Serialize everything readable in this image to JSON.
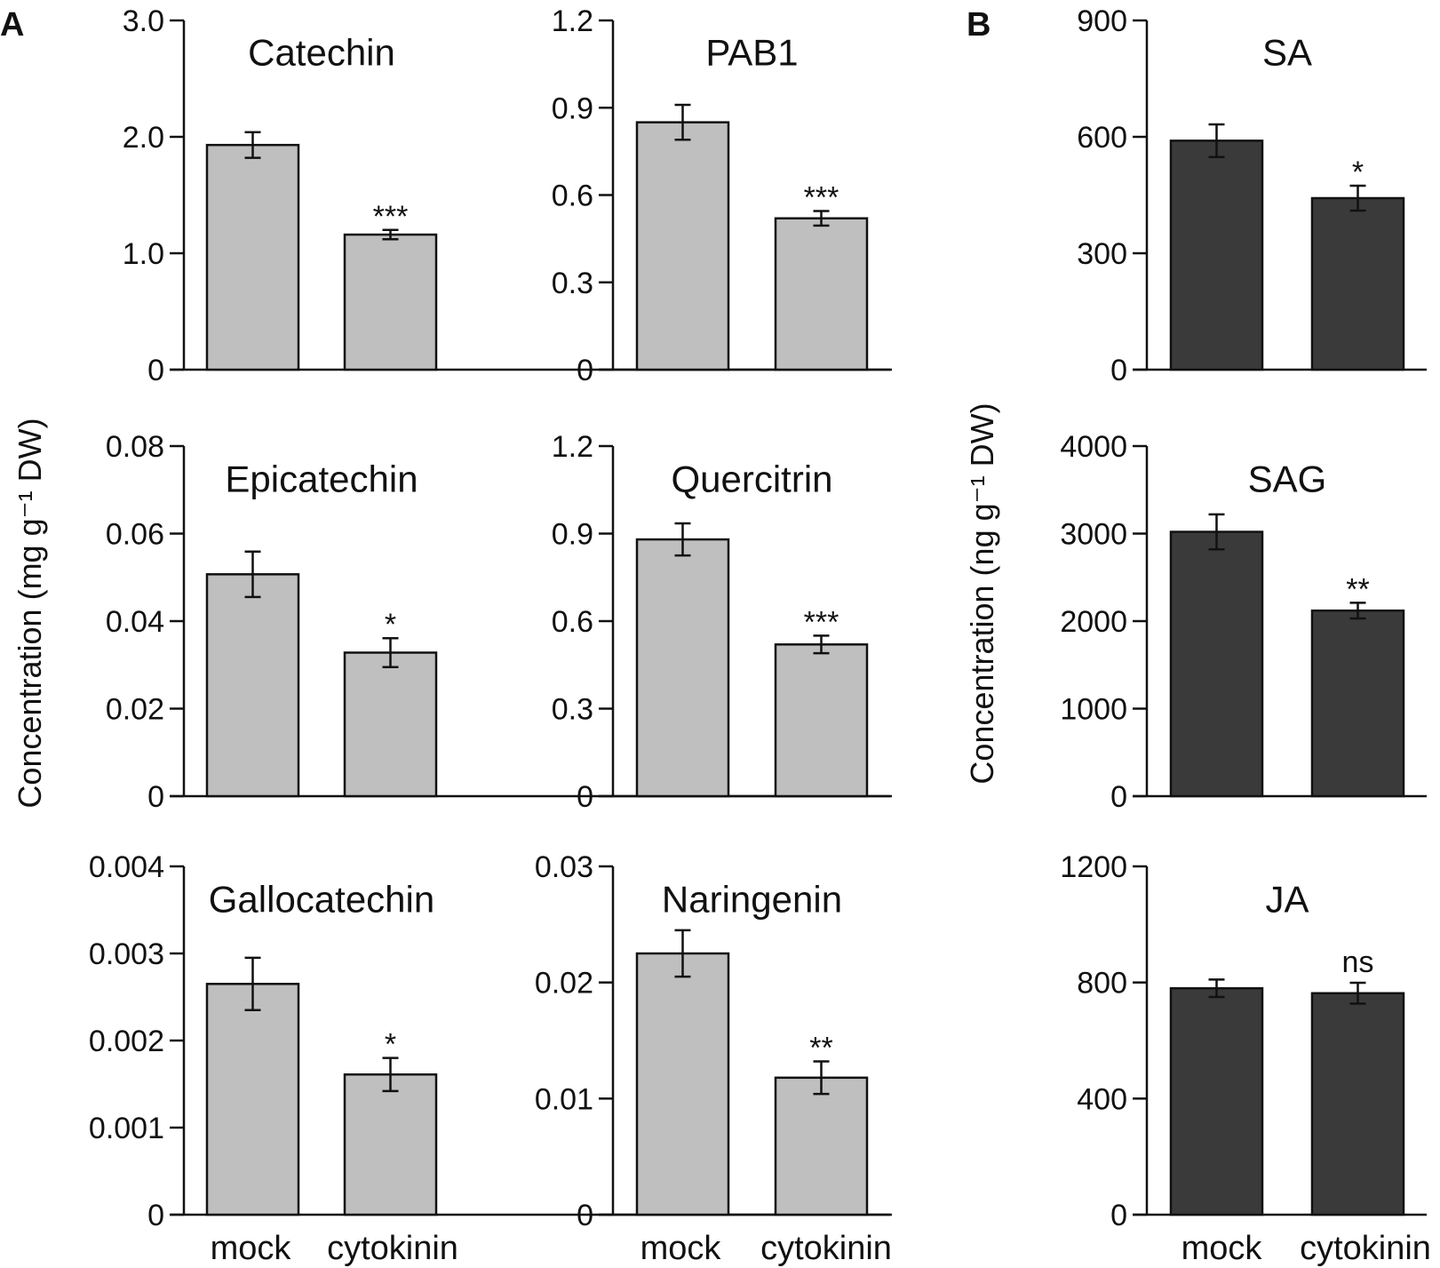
{
  "figure": {
    "panel_letters": [
      "A",
      "B"
    ],
    "y_titles": {
      "A": "Concentration (mg g⁻¹ DW)",
      "B": "Concentration (ng g⁻¹ DW)"
    },
    "bar_colors": {
      "A": "#bfbfbf",
      "B": "#3a3a3a"
    }
  },
  "chart_data": [
    {
      "type": "bar",
      "panel": "A",
      "title": "Catechin",
      "categories": [
        "mock",
        "cytokinin"
      ],
      "show_categories": false,
      "values": [
        1.93,
        1.16
      ],
      "errors": [
        0.11,
        0.04
      ],
      "significance": [
        "",
        "***"
      ],
      "ylim": [
        0,
        3.0
      ],
      "yticks": [
        0,
        1.0,
        2.0,
        3.0
      ],
      "ytick_labels": [
        "0",
        "1.0",
        "2.0",
        "3.0"
      ]
    },
    {
      "type": "bar",
      "panel": "A",
      "title": "PAB1",
      "categories": [
        "mock",
        "cytokinin"
      ],
      "show_categories": false,
      "values": [
        0.85,
        0.52
      ],
      "errors": [
        0.06,
        0.025
      ],
      "significance": [
        "",
        "***"
      ],
      "ylim": [
        0,
        1.2
      ],
      "yticks": [
        0,
        0.3,
        0.6,
        0.9,
        1.2
      ],
      "ytick_labels": [
        "0",
        "0.3",
        "0.6",
        "0.9",
        "1.2"
      ]
    },
    {
      "type": "bar",
      "panel": "B",
      "title": "SA",
      "categories": [
        "mock",
        "cytokinin"
      ],
      "show_categories": false,
      "values": [
        590,
        442
      ],
      "errors": [
        42,
        32
      ],
      "significance": [
        "",
        "*"
      ],
      "ylim": [
        0,
        900
      ],
      "yticks": [
        0,
        300,
        600,
        900
      ],
      "ytick_labels": [
        "0",
        "300",
        "600",
        "900"
      ]
    },
    {
      "type": "bar",
      "panel": "A",
      "title": "Epicatechin",
      "categories": [
        "mock",
        "cytokinin"
      ],
      "show_categories": false,
      "values": [
        0.0507,
        0.0328
      ],
      "errors": [
        0.0052,
        0.0033
      ],
      "significance": [
        "",
        "*"
      ],
      "ylim": [
        0,
        0.08
      ],
      "yticks": [
        0,
        0.02,
        0.04,
        0.06,
        0.08
      ],
      "ytick_labels": [
        "0",
        "0.02",
        "0.04",
        "0.06",
        "0.08"
      ]
    },
    {
      "type": "bar",
      "panel": "A",
      "title": "Quercitrin",
      "categories": [
        "mock",
        "cytokinin"
      ],
      "show_categories": false,
      "values": [
        0.88,
        0.52
      ],
      "errors": [
        0.055,
        0.03
      ],
      "significance": [
        "",
        "***"
      ],
      "ylim": [
        0,
        1.2
      ],
      "yticks": [
        0,
        0.3,
        0.6,
        0.9,
        1.2
      ],
      "ytick_labels": [
        "0",
        "0.3",
        "0.6",
        "0.9",
        "1.2"
      ]
    },
    {
      "type": "bar",
      "panel": "B",
      "title": "SAG",
      "categories": [
        "mock",
        "cytokinin"
      ],
      "show_categories": false,
      "values": [
        3020,
        2120
      ],
      "errors": [
        200,
        90
      ],
      "significance": [
        "",
        "**"
      ],
      "ylim": [
        0,
        4000
      ],
      "yticks": [
        0,
        1000,
        2000,
        3000,
        4000
      ],
      "ytick_labels": [
        "0",
        "1000",
        "2000",
        "3000",
        "4000"
      ]
    },
    {
      "type": "bar",
      "panel": "A",
      "title": "Gallocatechin",
      "categories": [
        "mock",
        "cytokinin"
      ],
      "show_categories": true,
      "values": [
        0.00265,
        0.00161
      ],
      "errors": [
        0.0003,
        0.00019
      ],
      "significance": [
        "",
        "*"
      ],
      "ylim": [
        0,
        0.004
      ],
      "yticks": [
        0,
        0.001,
        0.002,
        0.003,
        0.004
      ],
      "ytick_labels": [
        "0",
        "0.001",
        "0.002",
        "0.003",
        "0.004"
      ]
    },
    {
      "type": "bar",
      "panel": "A",
      "title": "Naringenin",
      "categories": [
        "mock",
        "cytokinin"
      ],
      "show_categories": true,
      "values": [
        0.0225,
        0.0118
      ],
      "errors": [
        0.002,
        0.0014
      ],
      "significance": [
        "",
        "**"
      ],
      "ylim": [
        0,
        0.03
      ],
      "yticks": [
        0,
        0.01,
        0.02,
        0.03
      ],
      "ytick_labels": [
        "0",
        "0.01",
        "0.02",
        "0.03"
      ]
    },
    {
      "type": "bar",
      "panel": "B",
      "title": "JA",
      "categories": [
        "mock",
        "cytokinin"
      ],
      "show_categories": true,
      "values": [
        780,
        763
      ],
      "errors": [
        30,
        36
      ],
      "significance": [
        "",
        "ns"
      ],
      "ylim": [
        0,
        1200
      ],
      "yticks": [
        0,
        400,
        800,
        1200
      ],
      "ytick_labels": [
        "0",
        "400",
        "800",
        "1200"
      ]
    }
  ]
}
